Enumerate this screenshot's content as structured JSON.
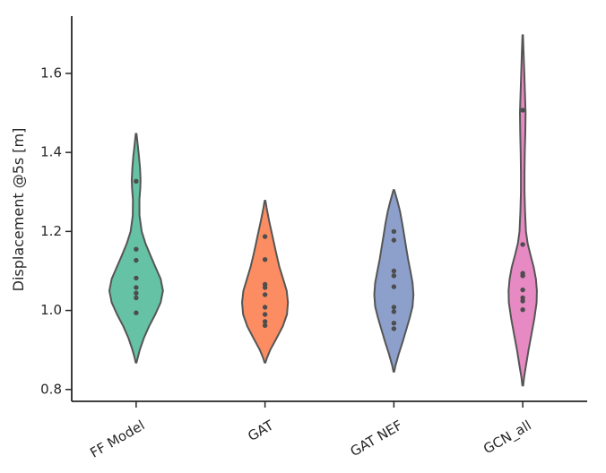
{
  "chart_data": {
    "type": "violin",
    "title": "",
    "xlabel": "",
    "ylabel": "Displacement @5s [m]",
    "ylim": [
      0.77,
      1.745
    ],
    "yticks": [
      "0.8",
      "1.0",
      "1.2",
      "1.4",
      "1.6"
    ],
    "categories": [
      "FF Model",
      "GAT",
      "GAT NEF",
      "GCN_all"
    ],
    "colors": [
      "#66c2a5",
      "#fc8d62",
      "#8da0cb",
      "#e78ac3"
    ],
    "series": [
      {
        "values": [
          1.327,
          1.155,
          1.127,
          1.082,
          1.058,
          1.044,
          1.032,
          0.994
        ],
        "profile": [
          [
            0.868,
            0.003
          ],
          [
            0.88,
            0.012
          ],
          [
            0.9,
            0.028
          ],
          [
            0.93,
            0.06
          ],
          [
            0.96,
            0.1
          ],
          [
            0.99,
            0.148
          ],
          [
            1.02,
            0.19
          ],
          [
            1.05,
            0.208
          ],
          [
            1.08,
            0.19
          ],
          [
            1.11,
            0.15
          ],
          [
            1.14,
            0.11
          ],
          [
            1.17,
            0.072
          ],
          [
            1.2,
            0.043
          ],
          [
            1.24,
            0.026
          ],
          [
            1.28,
            0.025
          ],
          [
            1.31,
            0.032
          ],
          [
            1.33,
            0.034
          ],
          [
            1.36,
            0.03
          ],
          [
            1.39,
            0.022
          ],
          [
            1.42,
            0.012
          ],
          [
            1.447,
            0.003
          ]
        ]
      },
      {
        "values": [
          1.187,
          1.129,
          1.066,
          1.058,
          1.04,
          1.008,
          0.99,
          0.972,
          0.962
        ],
        "profile": [
          [
            0.868,
            0.003
          ],
          [
            0.88,
            0.015
          ],
          [
            0.9,
            0.04
          ],
          [
            0.93,
            0.09
          ],
          [
            0.96,
            0.138
          ],
          [
            0.99,
            0.17
          ],
          [
            1.02,
            0.178
          ],
          [
            1.05,
            0.168
          ],
          [
            1.08,
            0.14
          ],
          [
            1.11,
            0.112
          ],
          [
            1.14,
            0.09
          ],
          [
            1.17,
            0.07
          ],
          [
            1.2,
            0.05
          ],
          [
            1.23,
            0.03
          ],
          [
            1.26,
            0.012
          ],
          [
            1.278,
            0.003
          ]
        ]
      },
      {
        "values": [
          1.2,
          1.178,
          1.1,
          1.088,
          1.06,
          1.008,
          0.997,
          0.968,
          0.954
        ],
        "profile": [
          [
            0.845,
            0.003
          ],
          [
            0.86,
            0.012
          ],
          [
            0.89,
            0.038
          ],
          [
            0.92,
            0.068
          ],
          [
            0.95,
            0.095
          ],
          [
            0.98,
            0.122
          ],
          [
            1.01,
            0.145
          ],
          [
            1.04,
            0.152
          ],
          [
            1.07,
            0.145
          ],
          [
            1.1,
            0.128
          ],
          [
            1.13,
            0.11
          ],
          [
            1.16,
            0.095
          ],
          [
            1.19,
            0.08
          ],
          [
            1.22,
            0.065
          ],
          [
            1.25,
            0.048
          ],
          [
            1.28,
            0.025
          ],
          [
            1.305,
            0.003
          ]
        ]
      },
      {
        "values": [
          1.507,
          1.167,
          1.094,
          1.088,
          1.052,
          1.032,
          1.024,
          1.002
        ],
        "profile": [
          [
            0.81,
            0.003
          ],
          [
            0.83,
            0.01
          ],
          [
            0.86,
            0.025
          ],
          [
            0.9,
            0.045
          ],
          [
            0.94,
            0.068
          ],
          [
            0.98,
            0.09
          ],
          [
            1.02,
            0.108
          ],
          [
            1.05,
            0.11
          ],
          [
            1.08,
            0.102
          ],
          [
            1.11,
            0.085
          ],
          [
            1.14,
            0.06
          ],
          [
            1.17,
            0.038
          ],
          [
            1.2,
            0.025
          ],
          [
            1.25,
            0.018
          ],
          [
            1.3,
            0.014
          ],
          [
            1.35,
            0.014
          ],
          [
            1.4,
            0.016
          ],
          [
            1.45,
            0.02
          ],
          [
            1.5,
            0.022
          ],
          [
            1.55,
            0.017
          ],
          [
            1.6,
            0.012
          ],
          [
            1.65,
            0.007
          ],
          [
            1.697,
            0.002
          ]
        ]
      }
    ],
    "point_color": "#4d4d4d",
    "outline_color": "#555555",
    "axis_color": "#262626",
    "grid": false,
    "legend": "none"
  }
}
